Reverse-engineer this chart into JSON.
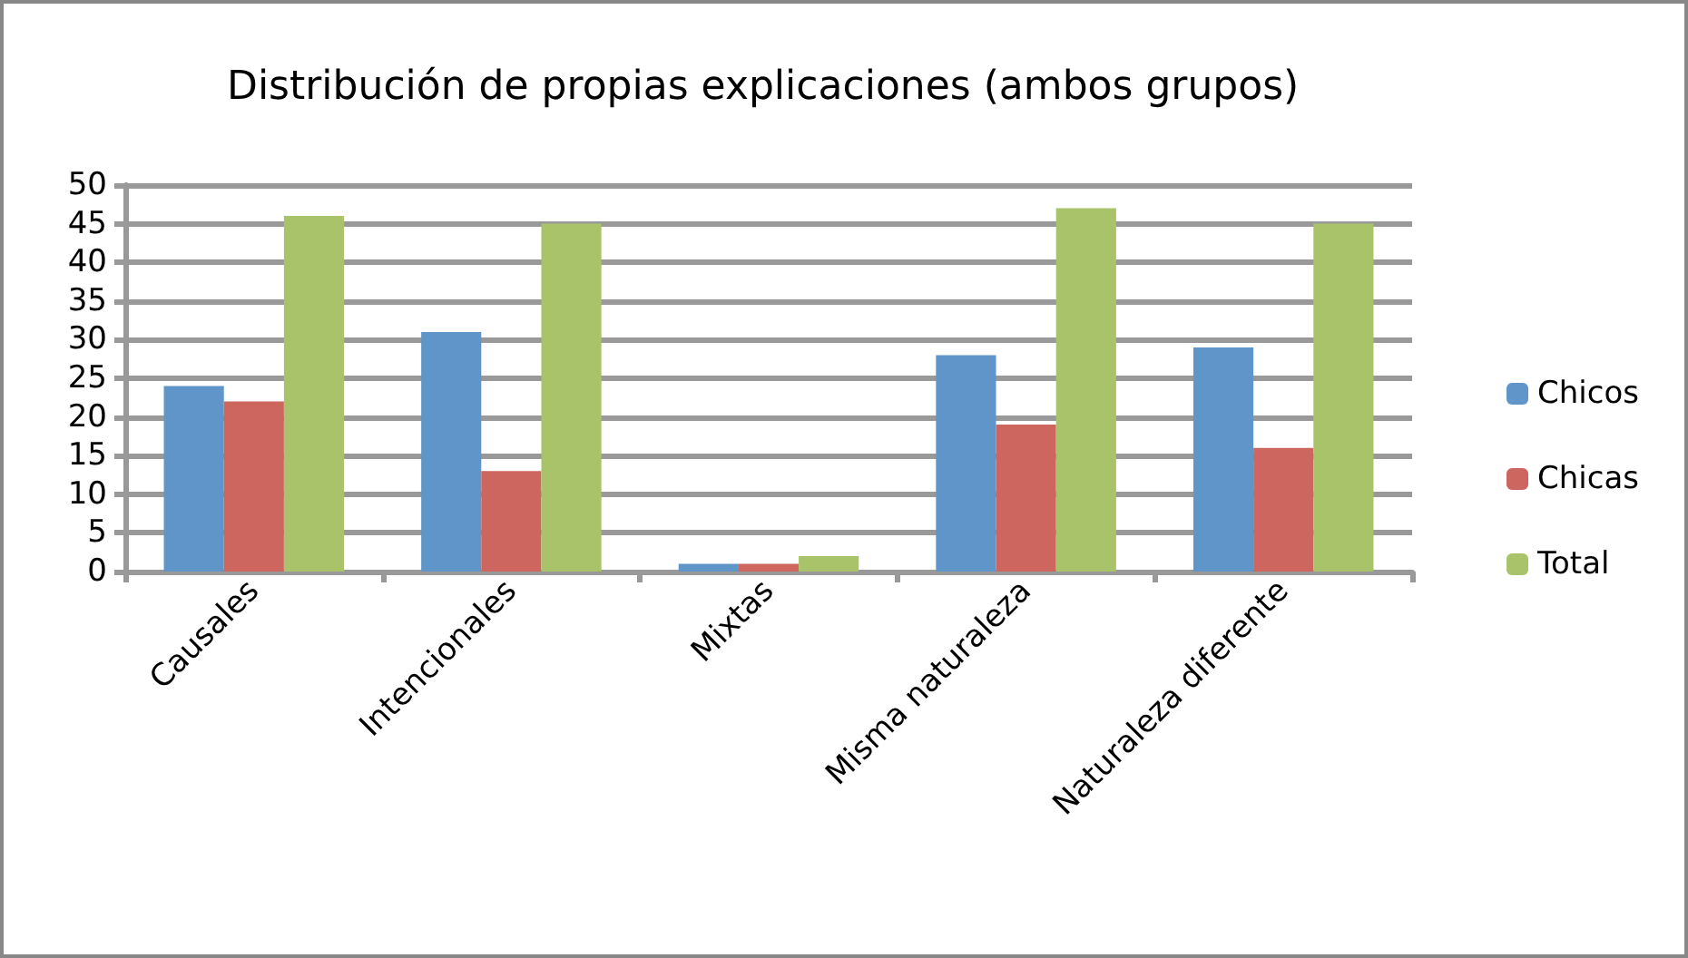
{
  "chart_data": {
    "type": "bar",
    "title": "Distribución de propias explicaciones (ambos grupos)",
    "categories": [
      "Causales",
      "Intencionales",
      "Mixtas",
      "Misma naturaleza",
      "Naturaleza diferente"
    ],
    "series": [
      {
        "name": "Chicos",
        "color": "#5f95c9",
        "values": [
          24,
          31,
          1,
          28,
          29
        ]
      },
      {
        "name": "Chicas",
        "color": "#cc665f",
        "values": [
          22,
          13,
          1,
          19,
          16
        ]
      },
      {
        "name": "Total",
        "color": "#a9c36a",
        "values": [
          46,
          45,
          2,
          47,
          45
        ]
      }
    ],
    "ylim": [
      0,
      50
    ],
    "yticks": [
      0,
      5,
      10,
      15,
      20,
      25,
      30,
      35,
      40,
      45,
      50
    ],
    "grid": "y",
    "legend": "right"
  }
}
